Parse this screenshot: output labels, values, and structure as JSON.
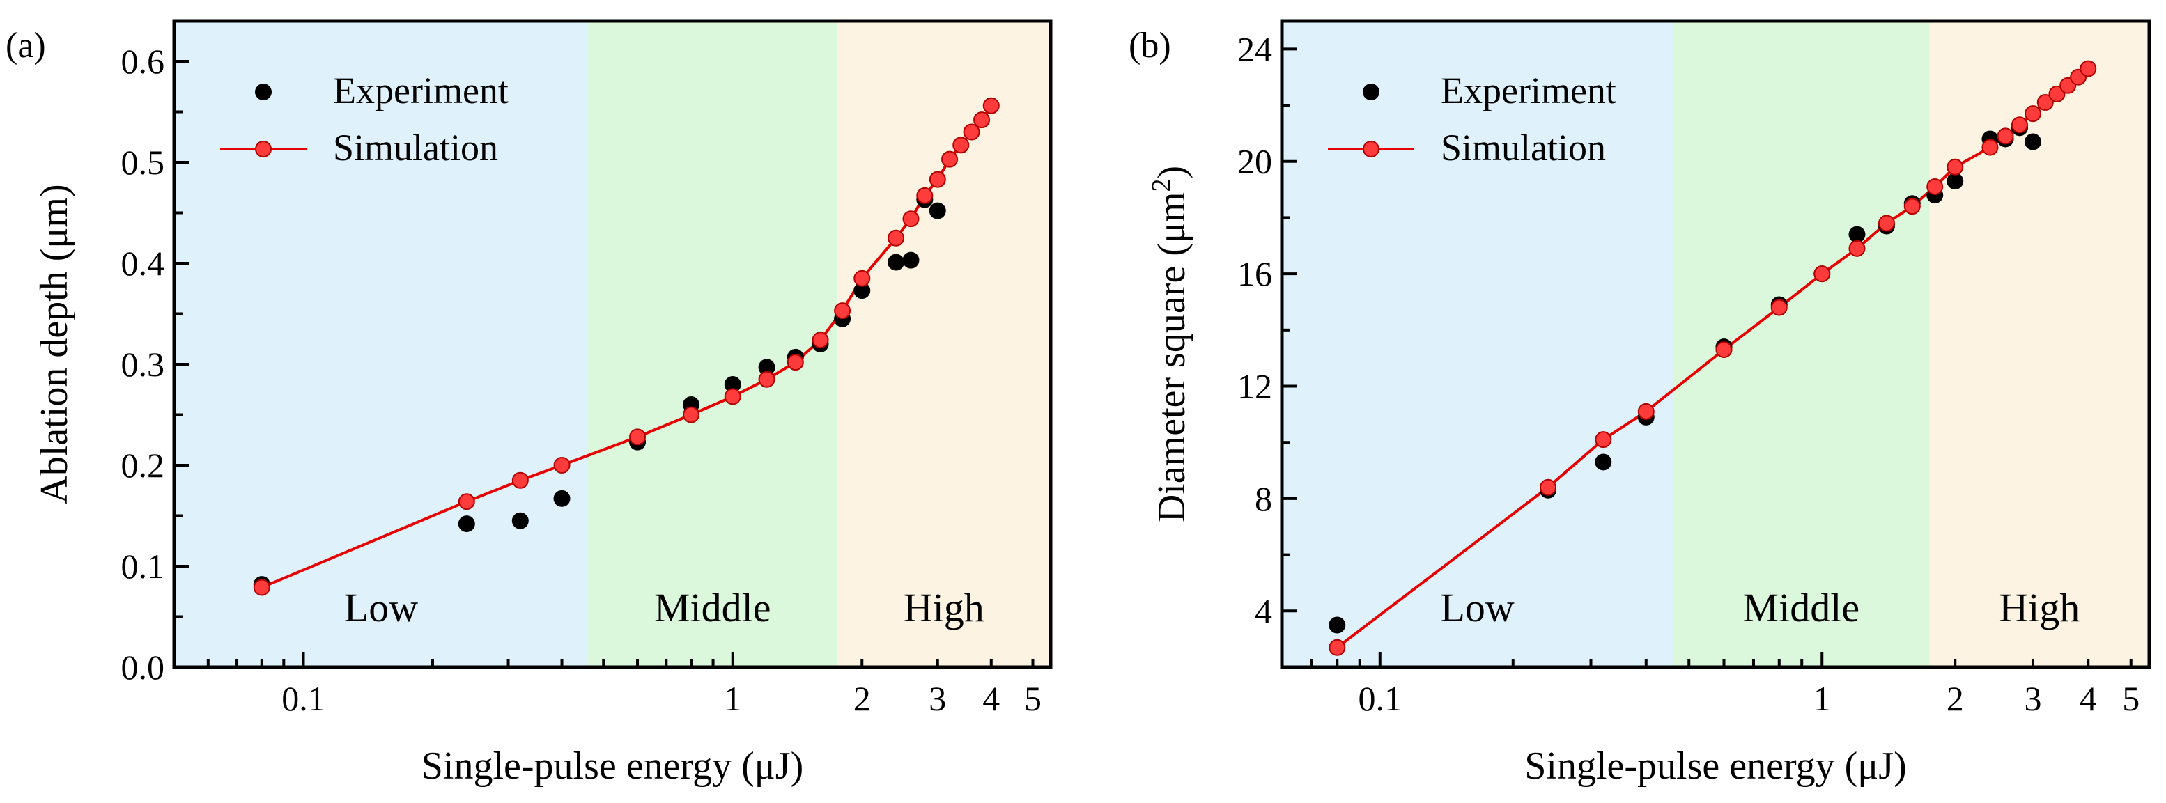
{
  "chart_data": [
    {
      "type": "scatter",
      "panel_label": "(a)",
      "xlabel": "Single-pulse energy (μJ)",
      "ylabel": "Ablation depth (μm)",
      "xscale": "log",
      "xlim": [
        0.05,
        5.5
      ],
      "ylim": [
        0,
        0.64
      ],
      "xticks": [
        {
          "v": 0.1,
          "label": "0.1"
        },
        {
          "v": 1,
          "label": "1"
        },
        {
          "v": 2,
          "label": "2"
        },
        {
          "v": 3,
          "label": "3"
        },
        {
          "v": 4,
          "label": "4"
        },
        {
          "v": 5,
          "label": "5"
        }
      ],
      "yticks": [
        {
          "v": 0.0,
          "label": "0.0"
        },
        {
          "v": 0.1,
          "label": "0.1"
        },
        {
          "v": 0.2,
          "label": "0.2"
        },
        {
          "v": 0.3,
          "label": "0.3"
        },
        {
          "v": 0.4,
          "label": "0.4"
        },
        {
          "v": 0.5,
          "label": "0.5"
        },
        {
          "v": 0.6,
          "label": "0.6"
        }
      ],
      "regions": [
        {
          "label": "Low",
          "from": 0.05,
          "to": 0.46,
          "color": "#dff2fc"
        },
        {
          "label": "Middle",
          "from": 0.46,
          "to": 1.75,
          "color": "#dcf8dc"
        },
        {
          "label": "High",
          "from": 1.75,
          "to": 5.5,
          "color": "#fdf3e3"
        }
      ],
      "legend": {
        "experiment": "Experiment",
        "simulation": "Simulation"
      },
      "series": [
        {
          "name": "Experiment",
          "style": "dot",
          "color": "#000000",
          "x": [
            0.08,
            0.24,
            0.32,
            0.4,
            0.6,
            0.8,
            1.0,
            1.2,
            1.4,
            1.6,
            1.8,
            2.0,
            2.4,
            2.6,
            2.8,
            3.0
          ],
          "y": [
            0.082,
            0.142,
            0.145,
            0.167,
            0.223,
            0.26,
            0.28,
            0.297,
            0.307,
            0.32,
            0.345,
            0.373,
            0.401,
            0.403,
            0.463,
            0.452
          ]
        },
        {
          "name": "Simulation",
          "style": "line-marker",
          "color": "#e60000",
          "x": [
            0.08,
            0.24,
            0.32,
            0.4,
            0.6,
            0.8,
            1.0,
            1.2,
            1.4,
            1.6,
            1.8,
            2.0,
            2.4,
            2.6,
            2.8,
            3.0,
            3.2,
            3.4,
            3.6,
            3.8,
            4.0
          ],
          "y": [
            0.079,
            0.164,
            0.185,
            0.2,
            0.228,
            0.25,
            0.268,
            0.285,
            0.302,
            0.324,
            0.353,
            0.385,
            0.425,
            0.444,
            0.467,
            0.483,
            0.503,
            0.517,
            0.53,
            0.542,
            0.556
          ]
        }
      ]
    },
    {
      "type": "scatter",
      "panel_label": "(b)",
      "xlabel": "Single-pulse energy (μJ)",
      "ylabel": "Diameter square (μm",
      "ylabel_superscript": "2",
      "ylabel_suffix": ")",
      "xscale": "log",
      "xlim": [
        0.06,
        5.5
      ],
      "ylim": [
        2,
        25
      ],
      "xticks": [
        {
          "v": 0.1,
          "label": "0.1"
        },
        {
          "v": 1,
          "label": "1"
        },
        {
          "v": 2,
          "label": "2"
        },
        {
          "v": 3,
          "label": "3"
        },
        {
          "v": 4,
          "label": "4"
        },
        {
          "v": 5,
          "label": "5"
        }
      ],
      "yticks": [
        {
          "v": 4,
          "label": "4"
        },
        {
          "v": 8,
          "label": "8"
        },
        {
          "v": 12,
          "label": "12"
        },
        {
          "v": 16,
          "label": "16"
        },
        {
          "v": 20,
          "label": "20"
        },
        {
          "v": 24,
          "label": "24"
        }
      ],
      "regions": [
        {
          "label": "Low",
          "from": 0.06,
          "to": 0.46,
          "color": "#dff2fc"
        },
        {
          "label": "Middle",
          "from": 0.46,
          "to": 1.75,
          "color": "#dcf8dc"
        },
        {
          "label": "High",
          "from": 1.75,
          "to": 5.5,
          "color": "#fdf3e3"
        }
      ],
      "legend": {
        "experiment": "Experiment",
        "simulation": "Simulation"
      },
      "series": [
        {
          "name": "Experiment",
          "style": "dot",
          "color": "#000000",
          "x": [
            0.08,
            0.24,
            0.32,
            0.4,
            0.6,
            0.8,
            1.0,
            1.2,
            1.4,
            1.6,
            1.8,
            2.0,
            2.4,
            2.6,
            2.8,
            3.0
          ],
          "y": [
            3.5,
            8.3,
            9.3,
            10.9,
            13.4,
            14.9,
            16.0,
            17.4,
            17.7,
            18.5,
            18.8,
            19.3,
            20.8,
            20.8,
            21.2,
            20.7
          ]
        },
        {
          "name": "Simulation",
          "style": "line-marker",
          "color": "#e60000",
          "x": [
            0.08,
            0.24,
            0.32,
            0.4,
            0.6,
            0.8,
            1.0,
            1.2,
            1.4,
            1.6,
            1.8,
            2.0,
            2.4,
            2.6,
            2.8,
            3.0,
            3.2,
            3.4,
            3.6,
            3.8,
            4.0
          ],
          "y": [
            2.7,
            8.4,
            10.1,
            11.1,
            13.3,
            14.8,
            16.0,
            16.9,
            17.8,
            18.4,
            19.1,
            19.8,
            20.5,
            20.9,
            21.3,
            21.7,
            22.1,
            22.4,
            22.7,
            23.0,
            23.3
          ]
        }
      ]
    }
  ]
}
